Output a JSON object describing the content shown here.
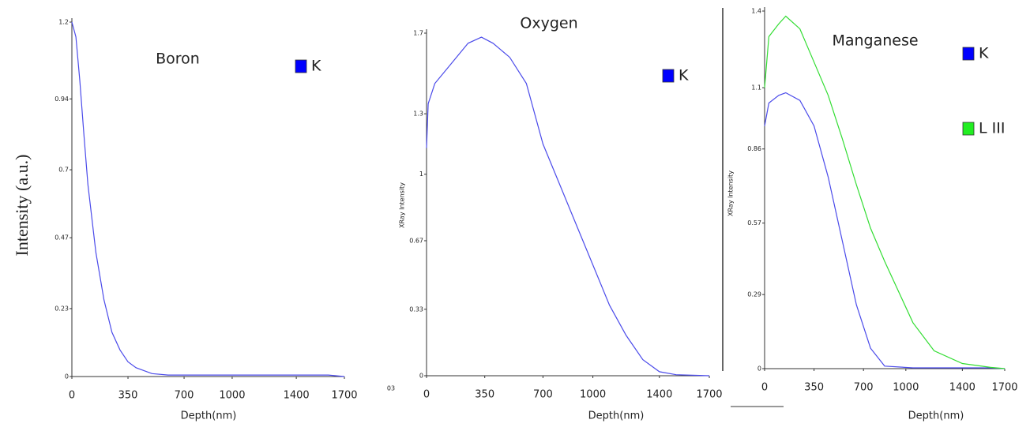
{
  "chart_data": [
    {
      "type": "line",
      "title": "Boron",
      "xlabel": "Depth(nm)",
      "ylabel": "Intensity (a.u.)",
      "x": [
        0,
        25,
        50,
        75,
        100,
        150,
        200,
        250,
        300,
        350,
        400,
        500,
        600,
        800,
        1000,
        1200,
        1400,
        1600,
        1700
      ],
      "series": [
        {
          "name": "K",
          "color": "#4b4bea",
          "marker_color": "#0000ff",
          "values": [
            1.2,
            1.15,
            1.0,
            0.82,
            0.65,
            0.42,
            0.26,
            0.15,
            0.09,
            0.05,
            0.03,
            0.01,
            0.005,
            0.005,
            0.005,
            0.005,
            0.005,
            0.005,
            0
          ]
        }
      ],
      "xlim": [
        0,
        1700
      ],
      "xticks": [
        0,
        350,
        700,
        1000,
        1400,
        1700
      ],
      "ylim": [
        0,
        1.2
      ],
      "yticks": [
        0,
        0.23,
        0.47,
        0.7,
        0.94,
        1.2
      ]
    },
    {
      "type": "line",
      "title": "Oxygen",
      "xlabel": "Depth(nm)",
      "ylabel": "XRay Intensity",
      "annotation": "03",
      "x": [
        0,
        10,
        50,
        150,
        250,
        330,
        400,
        500,
        600,
        700,
        800,
        900,
        1000,
        1100,
        1200,
        1300,
        1400,
        1500,
        1700
      ],
      "series": [
        {
          "name": "K",
          "color": "#4b4bea",
          "marker_color": "#0000ff",
          "values": [
            1.13,
            1.35,
            1.45,
            1.55,
            1.65,
            1.68,
            1.65,
            1.58,
            1.45,
            1.15,
            0.95,
            0.75,
            0.55,
            0.35,
            0.2,
            0.08,
            0.02,
            0.005,
            0
          ]
        }
      ],
      "xlim": [
        0,
        1700
      ],
      "xticks": [
        0,
        350,
        700,
        1000,
        1400,
        1700
      ],
      "ylim": [
        0,
        1.7
      ],
      "yticks": [
        0,
        0.33,
        0.67,
        1,
        1.3,
        1.7
      ]
    },
    {
      "type": "line",
      "title": "Manganese",
      "xlabel": "Depth(nm)",
      "ylabel": "XRay Intensity",
      "x": [
        0,
        30,
        100,
        150,
        250,
        350,
        450,
        550,
        650,
        750,
        850,
        1050,
        1200,
        1400,
        1600,
        1700
      ],
      "series": [
        {
          "name": "K",
          "color": "#4b4bea",
          "marker_color": "#0000ff",
          "values": [
            0.95,
            1.04,
            1.07,
            1.08,
            1.05,
            0.95,
            0.75,
            0.5,
            0.25,
            0.08,
            0.01,
            0.003,
            0.003,
            0.003,
            0.003,
            0
          ]
        },
        {
          "name": "L III",
          "color": "#33dd33",
          "marker_color": "#22ee22",
          "values": [
            1.1,
            1.3,
            1.35,
            1.38,
            1.33,
            1.2,
            1.07,
            0.9,
            0.72,
            0.55,
            0.42,
            0.18,
            0.07,
            0.02,
            0.005,
            0
          ]
        }
      ],
      "xlim": [
        0,
        1700
      ],
      "xticks": [
        0,
        350,
        700,
        1000,
        1400,
        1700
      ],
      "ylim": [
        0,
        1.4
      ],
      "yticks": [
        0,
        0.29,
        0.57,
        0.86,
        1.1,
        1.4
      ]
    }
  ]
}
